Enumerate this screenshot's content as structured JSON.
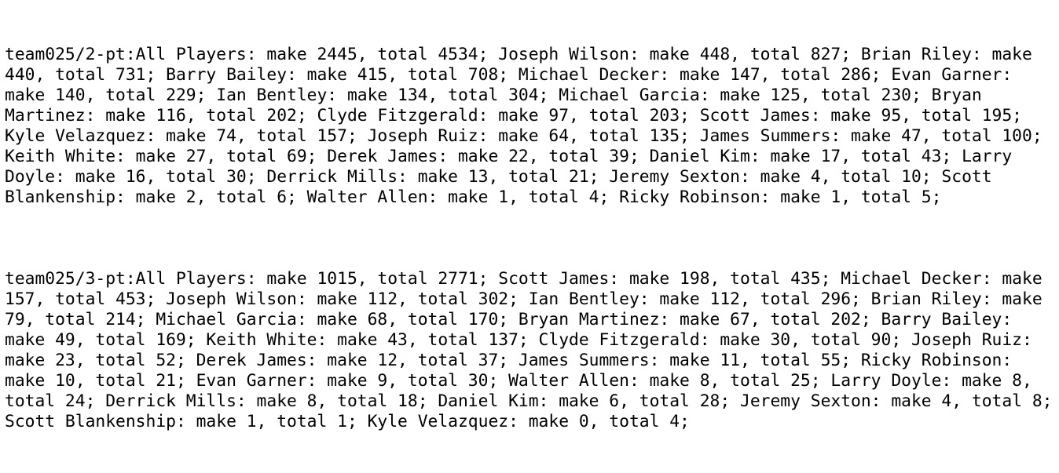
{
  "sections": [
    {
      "text": "team025/2-pt:All Players: make 2445, total 4534; Joseph Wilson: make 448, total 827; Brian Riley: make 440, total 731; Barry Bailey: make 415, total 708; Michael Decker: make 147, total 286; Evan Garner: make 140, total 229; Ian Bentley: make 134, total 304; Michael Garcia: make 125, total 230; Bryan Martinez: make 116, total 202; Clyde Fitzgerald: make 97, total 203; Scott James: make 95, total 195; Kyle Velazquez: make 74, total 157; Joseph Ruiz: make 64, total 135; James Summers: make 47, total 100; Keith White: make 27, total 69; Derek James: make 22, total 39; Daniel Kim: make 17, total 43; Larry Doyle: make 16, total 30; Derrick Mills: make 13, total 21; Jeremy Sexton: make 4, total 10; Scott Blankenship: make 2, total 6; Walter Allen: make 1, total 4; Ricky Robinson: make 1, total 5;"
    },
    {
      "text": "team025/3-pt:All Players: make 1015, total 2771; Scott James: make 198, total 435; Michael Decker: make 157, total 453; Joseph Wilson: make 112, total 302; Ian Bentley: make 112, total 296; Brian Riley: make 79, total 214; Michael Garcia: make 68, total 170; Bryan Martinez: make 67, total 202; Barry Bailey: make 49, total 169; Keith White: make 43, total 137; Clyde Fitzgerald: make 30, total 90; Joseph Ruiz: make 23, total 52; Derek James: make 12, total 37; James Summers: make 11, total 55; Ricky Robinson: make 10, total 21; Evan Garner: make 9, total 30; Walter Allen: make 8, total 25; Larry Doyle: make 8, total 24; Derrick Mills: make 8, total 18; Daniel Kim: make 6, total 28; Jeremy Sexton: make 4, total 8; Scott Blankenship: make 1, total 1; Kyle Velazquez: make 0, total 4;"
    }
  ]
}
